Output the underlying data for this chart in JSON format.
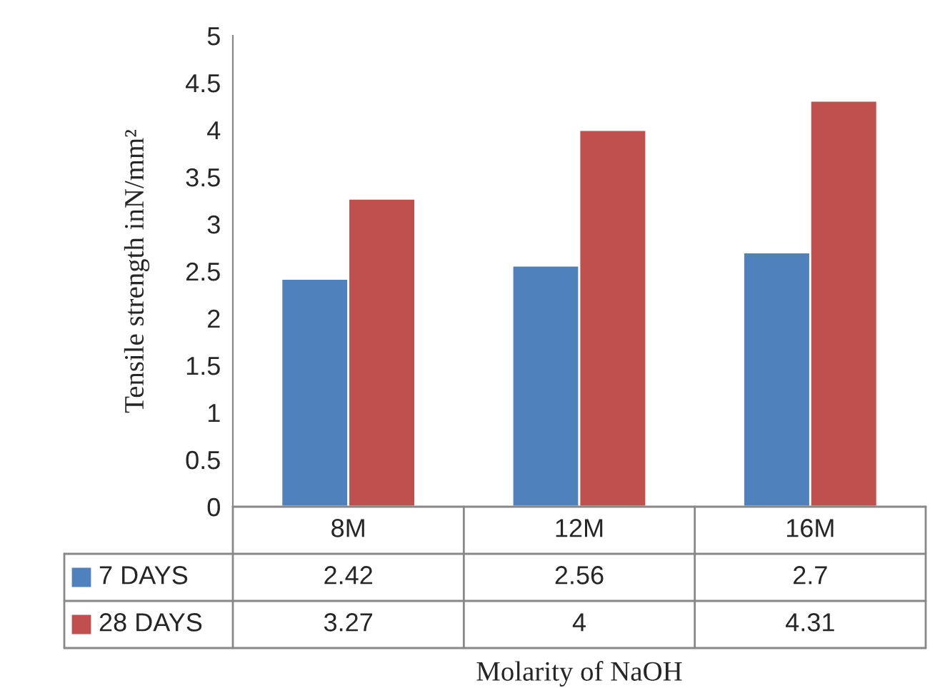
{
  "chart_data": {
    "type": "bar",
    "xlabel": "Molarity of NaOH",
    "ylabel": "Tensile strength inN/mm²",
    "categories": [
      "8M",
      "12M",
      "16M"
    ],
    "series": [
      {
        "name": "7 DAYS",
        "color": "#4f81bd",
        "values": [
          2.42,
          2.56,
          2.7
        ]
      },
      {
        "name": "28 DAYS",
        "color": "#c0504d",
        "values": [
          3.27,
          4,
          4.31
        ]
      }
    ],
    "ylim": [
      0,
      5
    ],
    "yticks": [
      0,
      0.5,
      1,
      1.5,
      2,
      2.5,
      3,
      3.5,
      4,
      4.5,
      5
    ],
    "grid": false,
    "legend": "bottom left",
    "data_labels": true
  }
}
